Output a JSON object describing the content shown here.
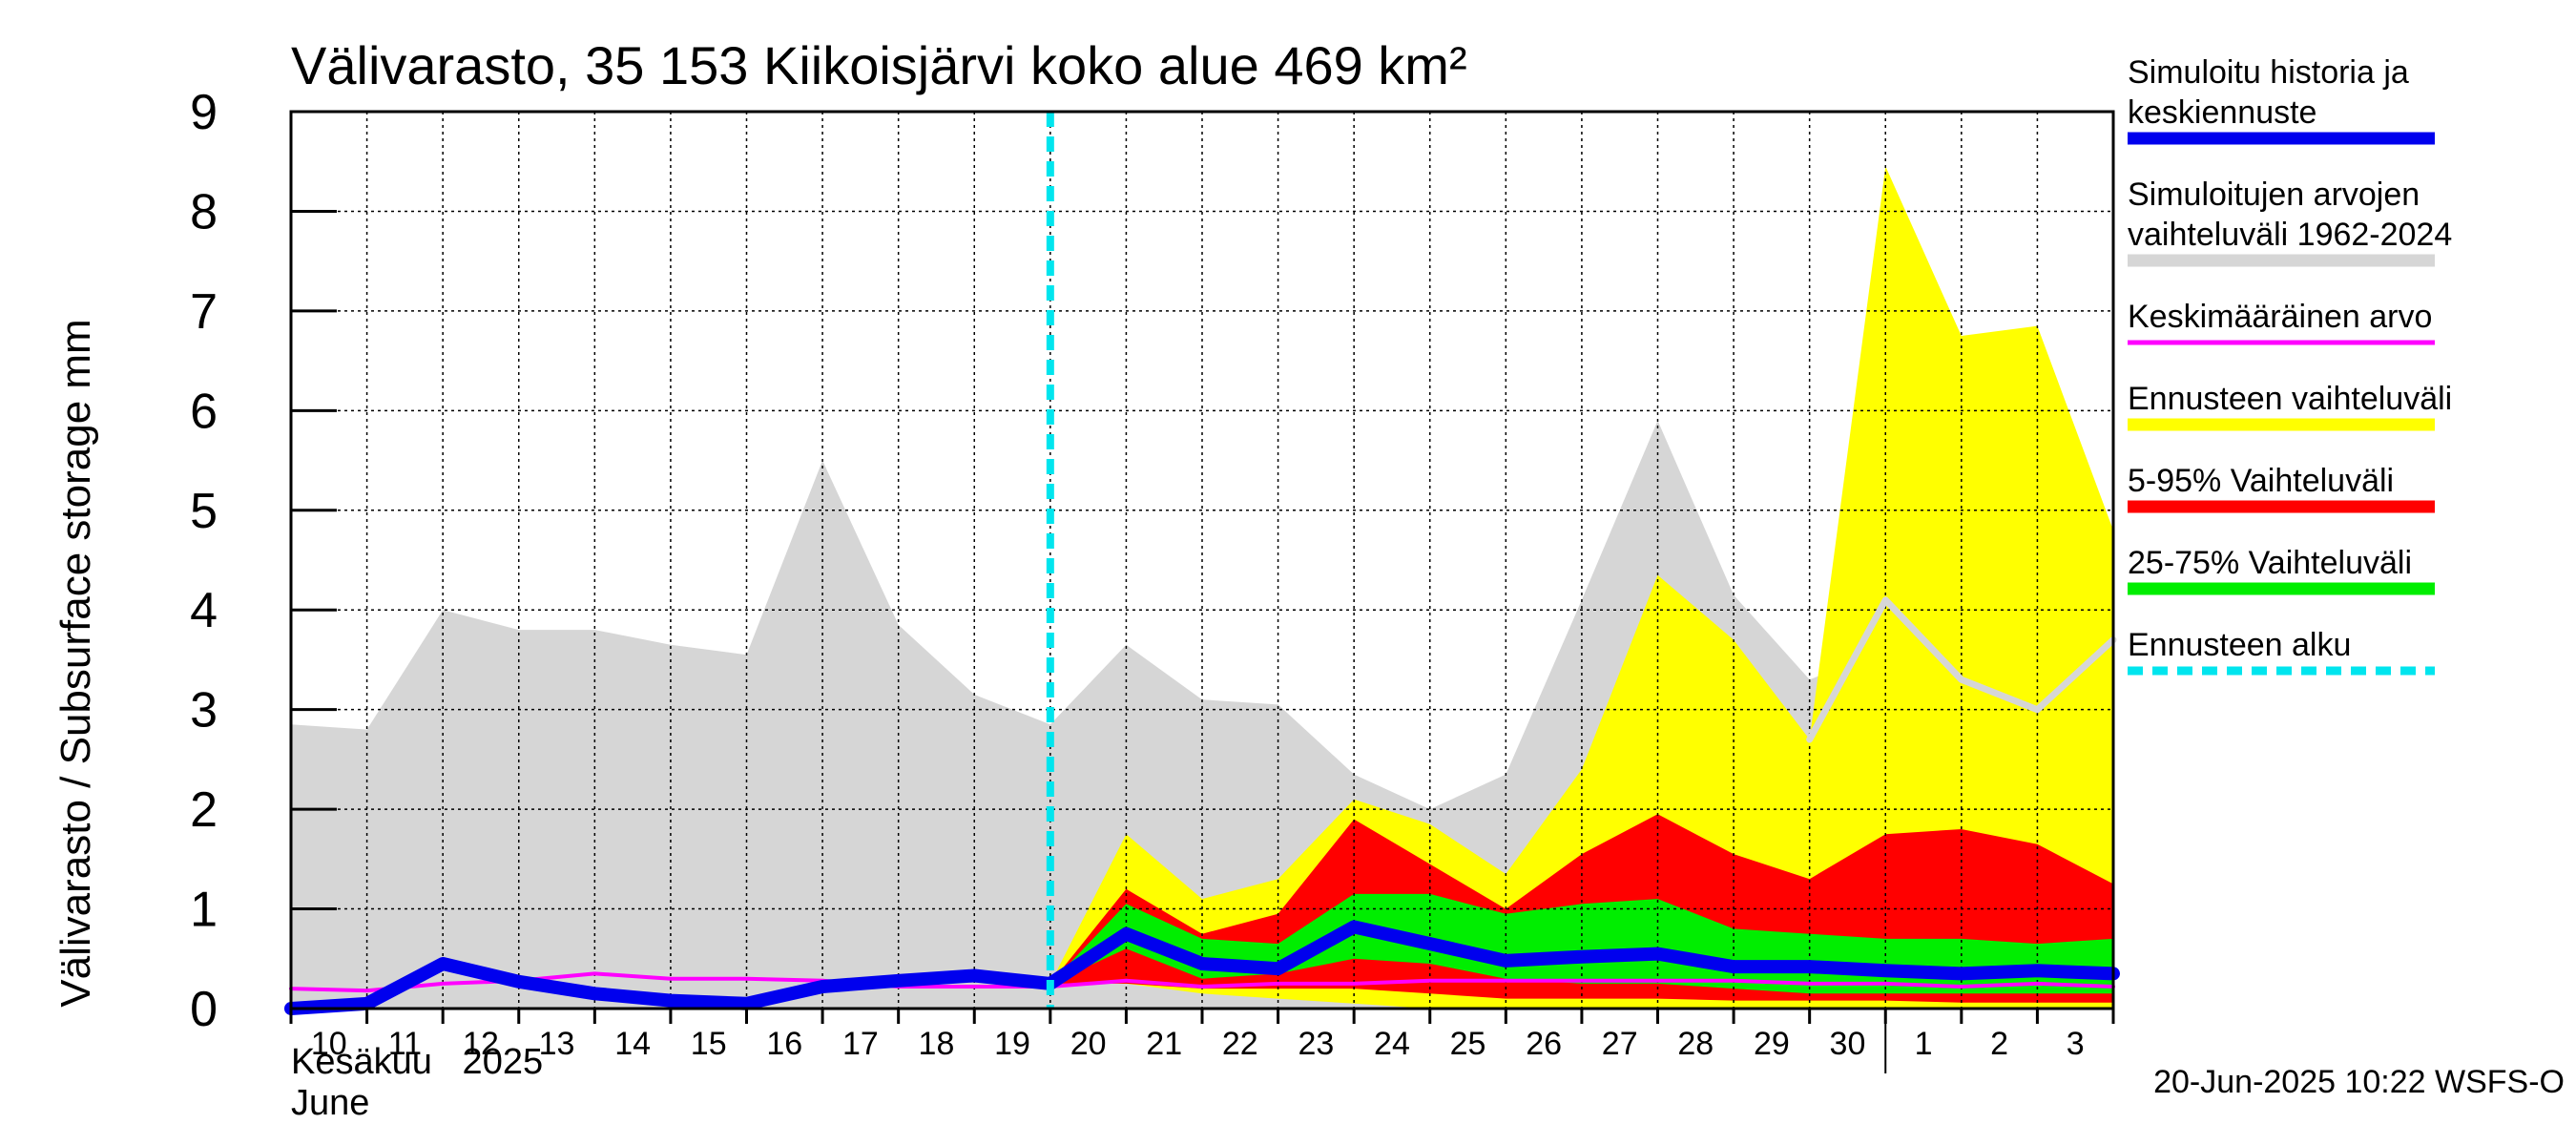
{
  "chart_data": {
    "type": "area",
    "title": "Välivarasto, 35 153 Kiikoisjärvi koko alue 469 km²",
    "ylabel": "Välivarasto / Subsurface storage  mm",
    "ylim": [
      0,
      9
    ],
    "yticks": [
      "0",
      "1",
      "2",
      "3",
      "4",
      "5",
      "6",
      "7",
      "8",
      "9"
    ],
    "x_ticks": [
      "10",
      "11",
      "12",
      "13",
      "14",
      "15",
      "16",
      "17",
      "18",
      "19",
      "20",
      "21",
      "22",
      "23",
      "24",
      "25",
      "26",
      "27",
      "28",
      "29",
      "30",
      "1",
      "2",
      "3"
    ],
    "month_label_1": "Kesäkuu   2025",
    "month_label_2": "June",
    "forecast_start_index": 10,
    "grid": true,
    "legend_position": "right",
    "footer": "20-Jun-2025 10:22 WSFS-O",
    "colors": {
      "history_range": "#d6d6d6",
      "forecast_range": "#ffff00",
      "p5_95": "#ff0000",
      "p25_75": "#00ee00",
      "mean": "#ff00ff",
      "simulated": "#0000ee",
      "forecast_start": "#00e5ee"
    },
    "series": [
      {
        "name": "Simuloitujen arvojen vaihteluväli 1962-2024",
        "role": "history_max",
        "values": [
          2.85,
          2.8,
          4.0,
          3.8,
          3.8,
          3.65,
          3.55,
          5.5,
          3.85,
          3.15,
          2.85,
          3.65,
          3.1,
          3.05,
          2.35,
          2.0,
          2.35,
          4.1,
          5.9,
          4.15,
          3.3,
          3.6,
          3.4,
          3.0,
          3.7
        ]
      },
      {
        "name": "Ennusteen vaihteluväli",
        "role": "forecast_max",
        "values": [
          null,
          null,
          null,
          null,
          null,
          null,
          null,
          null,
          null,
          null,
          0.25,
          1.75,
          1.1,
          1.3,
          2.1,
          1.85,
          1.35,
          2.4,
          4.35,
          3.7,
          2.7,
          8.45,
          6.75,
          6.85,
          4.8
        ]
      },
      {
        "name": "Ennusteen vaihteluväli",
        "role": "forecast_min",
        "values": [
          null,
          null,
          null,
          null,
          null,
          null,
          null,
          null,
          null,
          null,
          0.25,
          0.25,
          0.15,
          0.1,
          0.05,
          0.0,
          0.0,
          0.0,
          0.0,
          0.0,
          0.0,
          0.0,
          0.0,
          0.0,
          0.0
        ]
      },
      {
        "name": "5-95% Vaihteluväli",
        "role": "p95",
        "values": [
          null,
          null,
          null,
          null,
          null,
          null,
          null,
          null,
          null,
          null,
          0.25,
          1.2,
          0.75,
          0.95,
          1.9,
          1.45,
          1.0,
          1.55,
          1.95,
          1.55,
          1.3,
          1.75,
          1.8,
          1.65,
          1.25
        ]
      },
      {
        "name": "5-95% Vaihteluväli",
        "role": "p5",
        "values": [
          null,
          null,
          null,
          null,
          null,
          null,
          null,
          null,
          null,
          null,
          0.25,
          0.25,
          0.2,
          0.2,
          0.2,
          0.15,
          0.1,
          0.1,
          0.1,
          0.08,
          0.08,
          0.08,
          0.06,
          0.06,
          0.06
        ]
      },
      {
        "name": "25-75% Vaihteluväli",
        "role": "p75",
        "values": [
          null,
          null,
          null,
          null,
          null,
          null,
          null,
          null,
          null,
          null,
          0.25,
          1.05,
          0.7,
          0.65,
          1.15,
          1.15,
          0.95,
          1.05,
          1.1,
          0.8,
          0.75,
          0.7,
          0.7,
          0.65,
          0.7
        ]
      },
      {
        "name": "25-75% Vaihteluväli",
        "role": "p25",
        "values": [
          null,
          null,
          null,
          null,
          null,
          null,
          null,
          null,
          null,
          null,
          0.25,
          0.6,
          0.3,
          0.35,
          0.5,
          0.45,
          0.3,
          0.25,
          0.25,
          0.2,
          0.15,
          0.15,
          0.15,
          0.15,
          0.15
        ]
      },
      {
        "name": "Keskimääräinen arvo",
        "role": "mean",
        "values": [
          0.2,
          0.18,
          0.25,
          0.28,
          0.35,
          0.3,
          0.3,
          0.28,
          0.22,
          0.22,
          0.22,
          0.28,
          0.22,
          0.25,
          0.25,
          0.28,
          0.28,
          0.28,
          0.28,
          0.28,
          0.25,
          0.25,
          0.22,
          0.25,
          0.22
        ]
      },
      {
        "name": "Simuloitu historia ja keskiennuste",
        "role": "simulated",
        "values": [
          0.0,
          0.05,
          0.45,
          0.27,
          0.15,
          0.08,
          0.05,
          0.22,
          0.28,
          0.33,
          0.25,
          0.75,
          0.45,
          0.4,
          0.82,
          0.65,
          0.48,
          0.52,
          0.55,
          0.42,
          0.42,
          0.38,
          0.35,
          0.38,
          0.35
        ]
      },
      {
        "name": "",
        "role": "grey_line",
        "values": [
          null,
          null,
          null,
          null,
          null,
          null,
          null,
          null,
          null,
          null,
          null,
          null,
          null,
          null,
          null,
          null,
          null,
          null,
          null,
          null,
          2.7,
          4.1,
          3.3,
          3.0,
          3.7
        ]
      }
    ],
    "legend": [
      {
        "label_1": "Simuloitu historia ja",
        "label_2": "keskiennuste",
        "color": "#0000ee",
        "style": "thick"
      },
      {
        "label_1": "Simuloitujen arvojen",
        "label_2": "vaihteluväli 1962-2024",
        "color": "#d6d6d6",
        "style": "thick"
      },
      {
        "label_1": "Keskimääräinen arvo",
        "label_2": "",
        "color": "#ff00ff",
        "style": "thin"
      },
      {
        "label_1": "Ennusteen vaihteluväli",
        "label_2": "",
        "color": "#ffff00",
        "style": "thick"
      },
      {
        "label_1": "5-95% Vaihteluväli",
        "label_2": "",
        "color": "#ff0000",
        "style": "thick"
      },
      {
        "label_1": "25-75% Vaihteluväli",
        "label_2": "",
        "color": "#00ee00",
        "style": "thick"
      },
      {
        "label_1": "Ennusteen alku",
        "label_2": "",
        "color": "#00e5ee",
        "style": "dashed"
      }
    ]
  }
}
